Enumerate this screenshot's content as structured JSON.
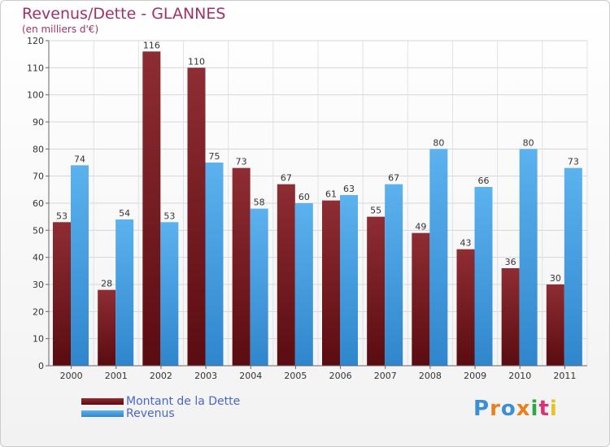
{
  "chart_data": {
    "type": "bar",
    "title": "Revenus/Dette - GLANNES",
    "subtitle": "(en milliers d'€)",
    "xlabel": "",
    "ylabel": "",
    "ylim": [
      0,
      120
    ],
    "yticks": [
      0,
      10,
      20,
      30,
      40,
      50,
      60,
      70,
      80,
      90,
      100,
      110,
      120
    ],
    "grid": true,
    "legend_position": "bottom-left",
    "categories": [
      "2000",
      "2001",
      "2002",
      "2003",
      "2004",
      "2005",
      "2006",
      "2007",
      "2008",
      "2009",
      "2010",
      "2011"
    ],
    "series": [
      {
        "name": "Montant de la Dette",
        "color": "#7a1a1f",
        "values": [
          53,
          28,
          116,
          110,
          73,
          67,
          61,
          55,
          49,
          43,
          36,
          30
        ]
      },
      {
        "name": "Revenus",
        "color": "#4ea6e6",
        "values": [
          74,
          54,
          53,
          75,
          58,
          60,
          63,
          67,
          80,
          66,
          80,
          73
        ]
      }
    ]
  },
  "logo": {
    "text": "Proxiti",
    "colors": [
      "#3a8fd6",
      "#e8811b",
      "#3a8fd6",
      "#e8811b",
      "#2aa84a",
      "#d8327a",
      "#e8c21b"
    ]
  }
}
